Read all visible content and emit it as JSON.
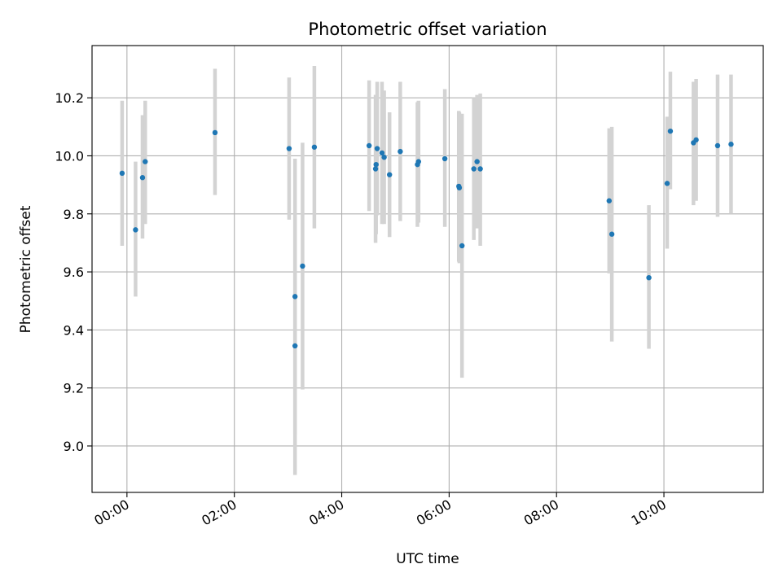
{
  "chart_data": {
    "type": "scatter",
    "title": "Photometric offset variation",
    "xlabel": "UTC time",
    "ylabel": "Photometric offset",
    "x_unit": "hours since 00:00 UTC",
    "xlim": [
      -0.65,
      11.85
    ],
    "ylim": [
      8.84,
      10.38
    ],
    "grid": true,
    "x_ticks": [
      {
        "value": 0,
        "label": "00:00"
      },
      {
        "value": 2,
        "label": "02:00"
      },
      {
        "value": 4,
        "label": "04:00"
      },
      {
        "value": 6,
        "label": "06:00"
      },
      {
        "value": 8,
        "label": "08:00"
      },
      {
        "value": 10,
        "label": "10:00"
      }
    ],
    "y_ticks": [
      {
        "value": 9.0,
        "label": "9.0"
      },
      {
        "value": 9.2,
        "label": "9.2"
      },
      {
        "value": 9.4,
        "label": "9.4"
      },
      {
        "value": 9.6,
        "label": "9.6"
      },
      {
        "value": 9.8,
        "label": "9.8"
      },
      {
        "value": 10.0,
        "label": "10.0"
      },
      {
        "value": 10.2,
        "label": "10.2"
      }
    ],
    "marker_color": "#1f77b4",
    "errorbar_color": "#d3d3d3",
    "points": [
      {
        "x": -0.09,
        "y": 9.94,
        "lo": 9.69,
        "hi": 10.19
      },
      {
        "x": 0.16,
        "y": 9.745,
        "lo": 9.515,
        "hi": 9.98
      },
      {
        "x": 0.29,
        "y": 9.925,
        "lo": 9.715,
        "hi": 10.14
      },
      {
        "x": 0.34,
        "y": 9.98,
        "lo": 9.765,
        "hi": 10.19
      },
      {
        "x": 1.64,
        "y": 10.08,
        "lo": 9.865,
        "hi": 10.3
      },
      {
        "x": 3.02,
        "y": 10.025,
        "lo": 9.78,
        "hi": 10.27
      },
      {
        "x": 3.13,
        "y": 9.515,
        "lo": 9.04,
        "hi": 9.99
      },
      {
        "x": 3.13,
        "y": 9.345,
        "lo": 8.9,
        "hi": 9.79
      },
      {
        "x": 3.27,
        "y": 9.62,
        "lo": 9.195,
        "hi": 10.045
      },
      {
        "x": 3.49,
        "y": 10.03,
        "lo": 9.75,
        "hi": 10.31
      },
      {
        "x": 4.51,
        "y": 10.035,
        "lo": 9.81,
        "hi": 10.26
      },
      {
        "x": 4.63,
        "y": 9.955,
        "lo": 9.7,
        "hi": 10.21
      },
      {
        "x": 4.64,
        "y": 9.97,
        "lo": 9.73,
        "hi": 10.21
      },
      {
        "x": 4.66,
        "y": 10.025,
        "lo": 9.795,
        "hi": 10.255
      },
      {
        "x": 4.75,
        "y": 10.01,
        "lo": 9.765,
        "hi": 10.255
      },
      {
        "x": 4.79,
        "y": 9.995,
        "lo": 9.765,
        "hi": 10.225
      },
      {
        "x": 4.89,
        "y": 9.935,
        "lo": 9.72,
        "hi": 10.15
      },
      {
        "x": 5.09,
        "y": 10.015,
        "lo": 9.775,
        "hi": 10.255
      },
      {
        "x": 5.41,
        "y": 9.97,
        "lo": 9.755,
        "hi": 10.185
      },
      {
        "x": 5.43,
        "y": 9.98,
        "lo": 9.77,
        "hi": 10.19
      },
      {
        "x": 5.92,
        "y": 9.99,
        "lo": 9.755,
        "hi": 10.23
      },
      {
        "x": 6.18,
        "y": 9.895,
        "lo": 9.635,
        "hi": 10.155
      },
      {
        "x": 6.19,
        "y": 9.89,
        "lo": 9.63,
        "hi": 10.15
      },
      {
        "x": 6.24,
        "y": 9.69,
        "lo": 9.235,
        "hi": 10.145
      },
      {
        "x": 6.46,
        "y": 9.955,
        "lo": 9.71,
        "hi": 10.2
      },
      {
        "x": 6.52,
        "y": 9.98,
        "lo": 9.75,
        "hi": 10.21
      },
      {
        "x": 6.58,
        "y": 9.955,
        "lo": 9.69,
        "hi": 10.215
      },
      {
        "x": 8.98,
        "y": 9.845,
        "lo": 9.595,
        "hi": 10.095
      },
      {
        "x": 9.03,
        "y": 9.73,
        "lo": 9.36,
        "hi": 10.1
      },
      {
        "x": 9.72,
        "y": 9.58,
        "lo": 9.335,
        "hi": 9.83
      },
      {
        "x": 10.06,
        "y": 9.905,
        "lo": 9.68,
        "hi": 10.135
      },
      {
        "x": 10.12,
        "y": 10.085,
        "lo": 9.885,
        "hi": 10.29
      },
      {
        "x": 10.55,
        "y": 10.045,
        "lo": 9.83,
        "hi": 10.255
      },
      {
        "x": 10.6,
        "y": 10.055,
        "lo": 9.845,
        "hi": 10.265
      },
      {
        "x": 11.0,
        "y": 10.035,
        "lo": 9.79,
        "hi": 10.28
      },
      {
        "x": 11.25,
        "y": 10.04,
        "lo": 9.8,
        "hi": 10.28
      }
    ]
  }
}
